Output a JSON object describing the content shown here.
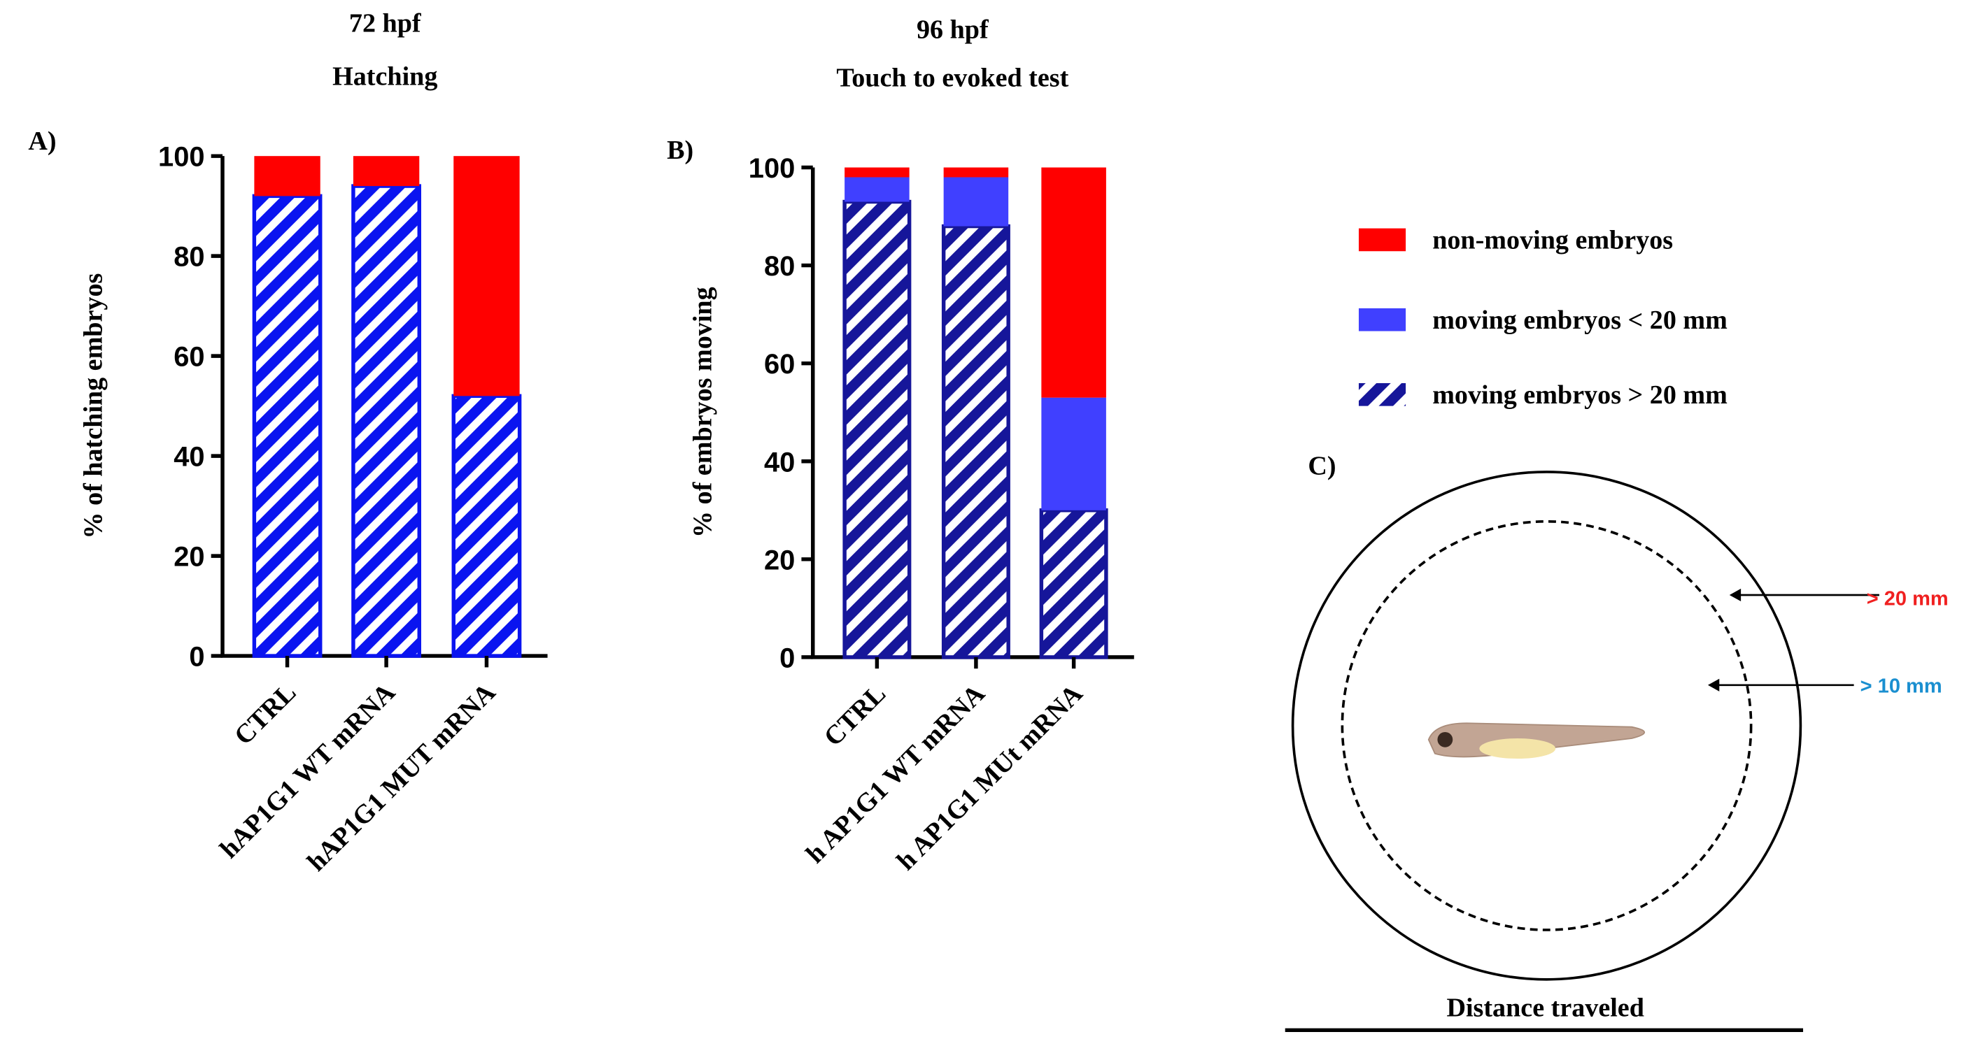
{
  "chart_data": [
    {
      "type": "stacked_bar",
      "panel": "A)",
      "title": "72 hpf",
      "subtitle": "Hatching",
      "ylabel": "% of hatching embryos",
      "categories": [
        "CTRL",
        "hAP1G1 WT mRNA",
        "hAP1G1 MUT mRNA"
      ],
      "series": [
        {
          "color": "#0a14f0",
          "pattern": "stripes",
          "values": [
            92,
            94,
            52
          ]
        },
        {
          "color": "#ff0000",
          "values": [
            8,
            6,
            48
          ]
        }
      ],
      "ylim": [
        0,
        100
      ],
      "yticks": [
        0,
        20,
        40,
        60,
        80,
        100
      ]
    },
    {
      "type": "stacked_bar",
      "panel": "B)",
      "title": "96 hpf",
      "subtitle": "Touch to evoked test",
      "ylabel": "% of embryos moving",
      "categories": [
        "CTRL",
        "h AP1G1 WT mRNA",
        "h AP1G1 MUt mRNA"
      ],
      "series": [
        {
          "name": "moving embryos > 20 mm",
          "color": "#16169a",
          "pattern": "stripes",
          "values": [
            93,
            88,
            30
          ]
        },
        {
          "name": "moving embryos < 20 mm",
          "color": "#4040ff",
          "values": [
            5,
            10,
            23
          ]
        },
        {
          "name": "non-moving embryos",
          "color": "#ff0000",
          "values": [
            2,
            2,
            47
          ]
        }
      ],
      "ylim": [
        0,
        100
      ],
      "yticks": [
        0,
        20,
        40,
        60,
        80,
        100
      ]
    }
  ],
  "diagram": {
    "panel": "C)",
    "outer_label": "> 20 mm",
    "inner_label": "> 10 mm",
    "caption": "Distance traveled"
  }
}
